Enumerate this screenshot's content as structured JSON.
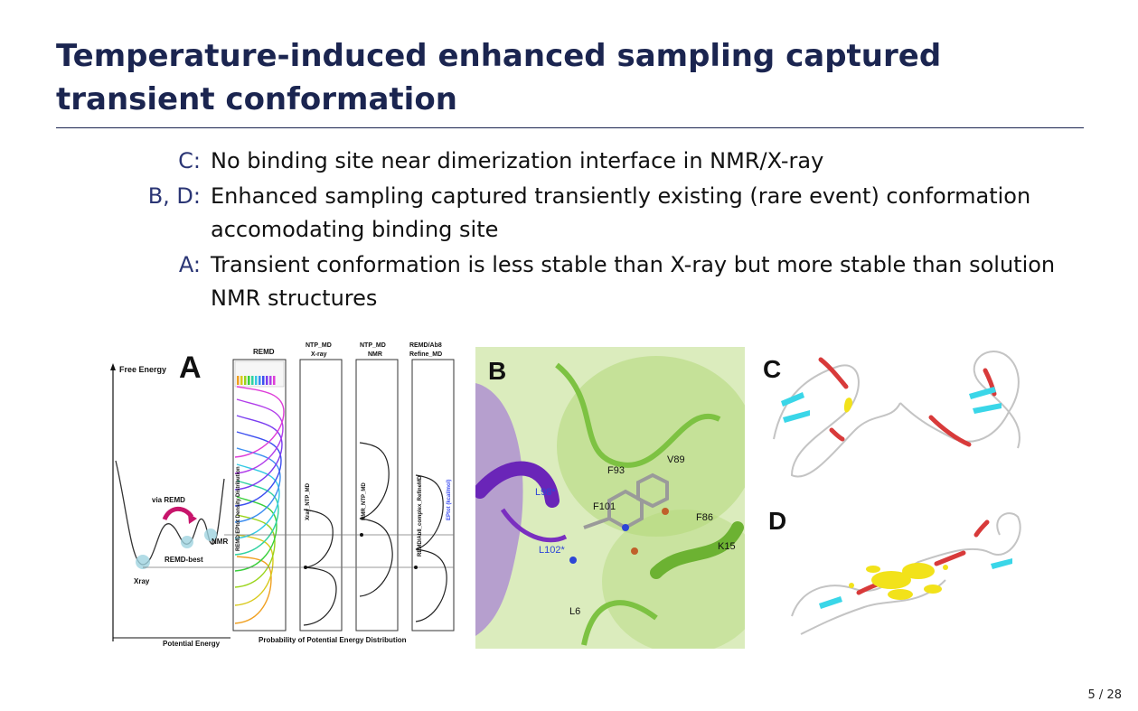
{
  "slide": {
    "title": "Temperature-induced enhanced sampling captured transient conformation",
    "page_number": "5 / 28"
  },
  "items": [
    {
      "label": "C:",
      "text": "No binding site near dimerization interface in NMR/X-ray"
    },
    {
      "label": "B, D:",
      "text": "Enhanced sampling captured transiently existing (rare event) conformation accomodating binding site"
    },
    {
      "label": "A:",
      "text": "Transient conformation is less stable than X-ray but more stable than solution NMR structures"
    }
  ],
  "figure_a": {
    "panel_label": "A",
    "y_axis_label": "Free Energy",
    "x_axis_label": "Potential Energy",
    "via_label": "via REMD",
    "nmr_label": "NMR",
    "remd_best_label": "REMD-best",
    "xray_label": "Xray",
    "col_remd": "REMD",
    "col_xray_1": "NTP_MD",
    "col_xray_2": "X-ray",
    "col_nmr_1": "NTP_MD",
    "col_nmr_2": "NMR",
    "col_refine_1": "REMD/Ab8",
    "col_refine_2": "Refine_MD",
    "prob_axis_label": "Probability of Potential Energy Distribution",
    "v_label_remd": "REMD EPtot Density Distribution",
    "v_label_xray": "Xray_NTP_MD",
    "v_label_nmr": "NMR_NTP_MD",
    "v_label_refine": "REMD/Ab8_complex_RefineMD",
    "v_label_eptot": "EPtot (kcal/mol)"
  },
  "figure_b": {
    "panel_label": "B",
    "residues": [
      "F93",
      "V89",
      "L98*",
      "F101",
      "F86",
      "L102*",
      "K15",
      "L6"
    ]
  },
  "figure_c": {
    "panel_label": "C"
  },
  "figure_d": {
    "panel_label": "D"
  },
  "colors": {
    "title": "#1b2550",
    "label": "#2b3675",
    "protein_green": "#7dc242",
    "protein_purple": "#7a2fc0",
    "helix_red": "#d83a3a",
    "strand_cyan": "#3ad6e8",
    "ligand_yellow": "#f2e21a"
  }
}
